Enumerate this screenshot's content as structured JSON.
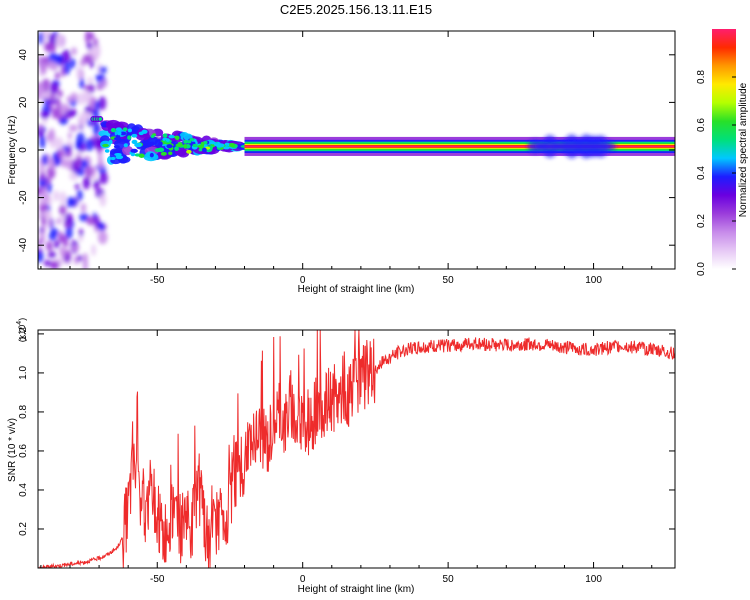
{
  "title": "C2E5.2025.156.13.11.E15",
  "chart_data": [
    {
      "type": "heatmap",
      "xlabel": "Height of straight line (km)",
      "ylabel": "Frequency (Hz)",
      "xlim": [
        -91,
        128
      ],
      "ylim": [
        -50,
        50
      ],
      "xticks": [
        -50,
        0,
        50,
        100
      ],
      "yticks": [
        -40,
        -20,
        0,
        20,
        40
      ],
      "colorbar": {
        "label": "Normalized spectral amplitude",
        "range": [
          0,
          1
        ],
        "ticks": [
          "0.0",
          "0.2",
          "0.4",
          "0.6",
          "0.8"
        ],
        "colormap": [
          "#ffffff",
          "#e6c8f5",
          "#c78bea",
          "#9b3ddb",
          "#6a00e0",
          "#1d1dff",
          "#00c8ff",
          "#00e07a",
          "#28e028",
          "#b4ff00",
          "#ffea00",
          "#ff9800",
          "#ff2a00",
          "#ff1e6e"
        ]
      },
      "features": [
        {
          "name": "diffuse noise patches",
          "x": [
            -91,
            -68
          ],
          "frequency": [
            -50,
            50
          ],
          "amplitude": 0.35
        },
        {
          "name": "upper branch",
          "x": [
            -72,
            -69
          ],
          "frequency": 13,
          "amplitude": 0.55
        },
        {
          "name": "fragmented carrier",
          "x": [
            -68,
            -20
          ],
          "frequency": [
            -2,
            10
          ],
          "amplitude": 0.6
        },
        {
          "name": "stable carrier",
          "x": [
            -20,
            128
          ],
          "frequency": 1.5,
          "amplitude": 1.0
        },
        {
          "name": "carrier broadening",
          "x": [
            80,
            105
          ],
          "frequency": [
            -2,
            6
          ],
          "amplitude": 0.5
        }
      ]
    },
    {
      "type": "line",
      "xlabel": "Height of straight line (km)",
      "ylabel": "SNR (10 * v/v)",
      "y_multiplier": "(x10",
      "y_multiplier_exp": "4",
      "y_multiplier_close": ")",
      "xlim": [
        -91,
        128
      ],
      "ylim": [
        0,
        1.22
      ],
      "xticks": [
        -50,
        0,
        50,
        100
      ],
      "yticks": [
        0.2,
        0.4,
        0.6,
        0.8,
        1.0,
        1.2
      ],
      "color": "#ee2b2b",
      "x": [
        -91,
        -85,
        -80,
        -75,
        -70,
        -67,
        -64,
        -62,
        -60,
        -58,
        -56,
        -54,
        -52,
        -50,
        -48,
        -46,
        -44,
        -42,
        -40,
        -38,
        -36,
        -34,
        -32,
        -30,
        -28,
        -26,
        -24,
        -22,
        -20,
        -18,
        -16,
        -14,
        -12,
        -10,
        -8,
        -6,
        -4,
        -2,
        0,
        2,
        4,
        6,
        8,
        10,
        12,
        14,
        16,
        18,
        20,
        22,
        25,
        28,
        31,
        35,
        40,
        50,
        60,
        70,
        80,
        90,
        100,
        110,
        120,
        128
      ],
      "y": [
        0.0,
        0.01,
        0.02,
        0.03,
        0.05,
        0.07,
        0.1,
        0.15,
        0.3,
        0.55,
        0.4,
        0.3,
        0.45,
        0.25,
        0.15,
        0.25,
        0.3,
        0.2,
        0.3,
        0.2,
        0.45,
        0.25,
        0.1,
        0.2,
        0.3,
        0.25,
        0.45,
        0.5,
        0.55,
        0.6,
        0.65,
        0.7,
        0.62,
        0.75,
        0.8,
        0.72,
        0.85,
        0.7,
        0.78,
        0.72,
        0.8,
        0.85,
        0.82,
        0.88,
        0.85,
        0.92,
        0.9,
        0.95,
        0.96,
        0.99,
        1.02,
        1.06,
        1.09,
        1.12,
        1.13,
        1.14,
        1.15,
        1.14,
        1.15,
        1.13,
        1.12,
        1.14,
        1.12,
        1.1
      ]
    }
  ]
}
